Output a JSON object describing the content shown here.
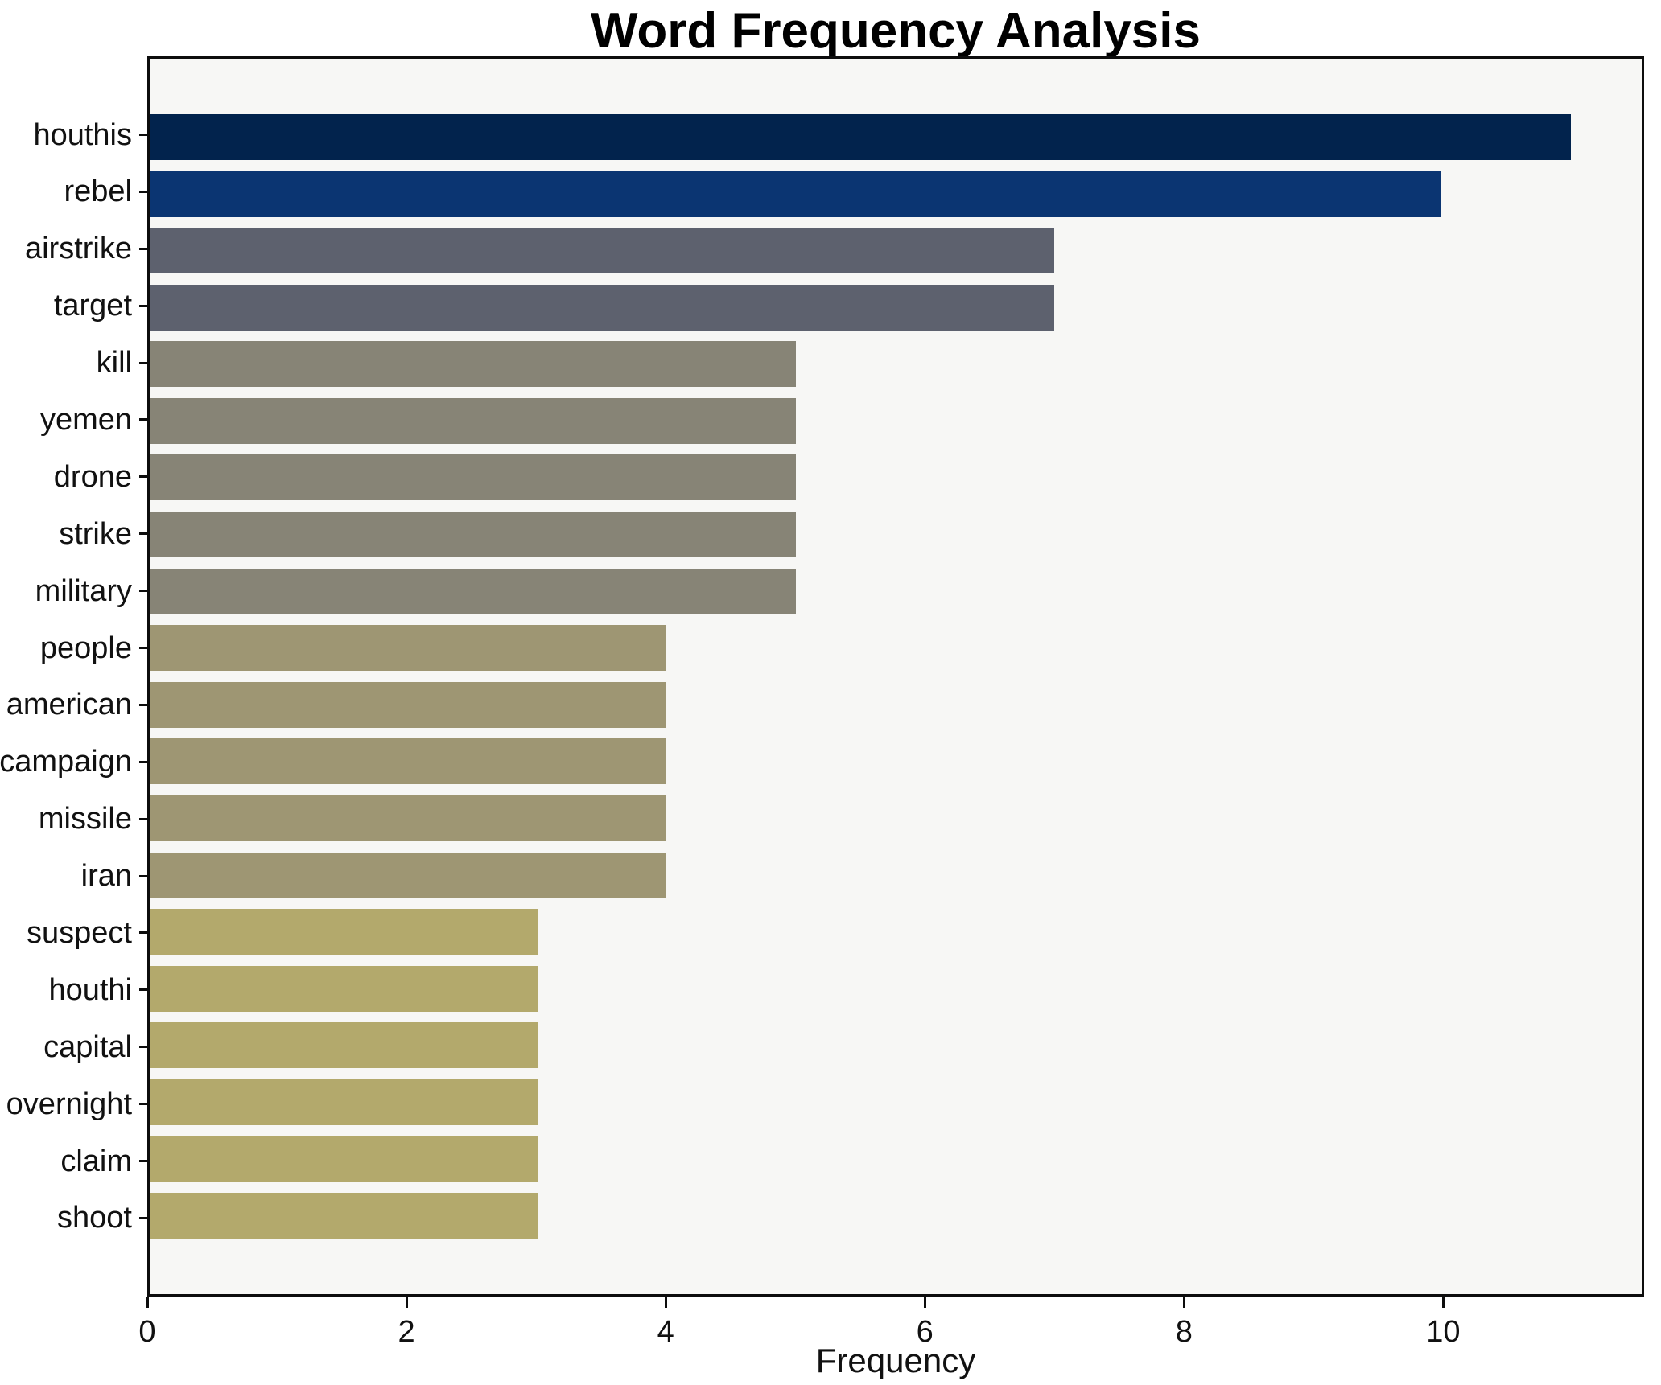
{
  "title": "Word Frequency Analysis",
  "chart_data": {
    "type": "bar",
    "orientation": "horizontal",
    "title": "Word Frequency Analysis",
    "xlabel": "Frequency",
    "ylabel": "",
    "categories": [
      "houthis",
      "rebel",
      "airstrike",
      "target",
      "kill",
      "yemen",
      "drone",
      "strike",
      "military",
      "people",
      "american",
      "campaign",
      "missile",
      "iran",
      "suspect",
      "houthi",
      "capital",
      "overnight",
      "claim",
      "shoot"
    ],
    "values": [
      11,
      10,
      7,
      7,
      5,
      5,
      5,
      5,
      5,
      4,
      4,
      4,
      4,
      4,
      3,
      3,
      3,
      3,
      3,
      3
    ],
    "bar_colors": [
      "#02234d",
      "#0b3572",
      "#5d616e",
      "#5d616e",
      "#878476",
      "#878476",
      "#878476",
      "#878476",
      "#878476",
      "#9e9673",
      "#9e9673",
      "#9e9673",
      "#9e9673",
      "#9e9673",
      "#b3a96c",
      "#b3a96c",
      "#b3a96c",
      "#b3a96c",
      "#b3a96c",
      "#b3a96c"
    ],
    "xticks": [
      0,
      2,
      4,
      6,
      8,
      10
    ],
    "xtick_labels": [
      "0",
      "2",
      "4",
      "6",
      "8",
      "10"
    ],
    "xlim": [
      0,
      11.55
    ],
    "grid": false,
    "legend": null,
    "plot_background": "#f7f7f5",
    "figure_background": "#ffffff",
    "axis_color": "#0d0d0d",
    "text_color": "#111111"
  }
}
